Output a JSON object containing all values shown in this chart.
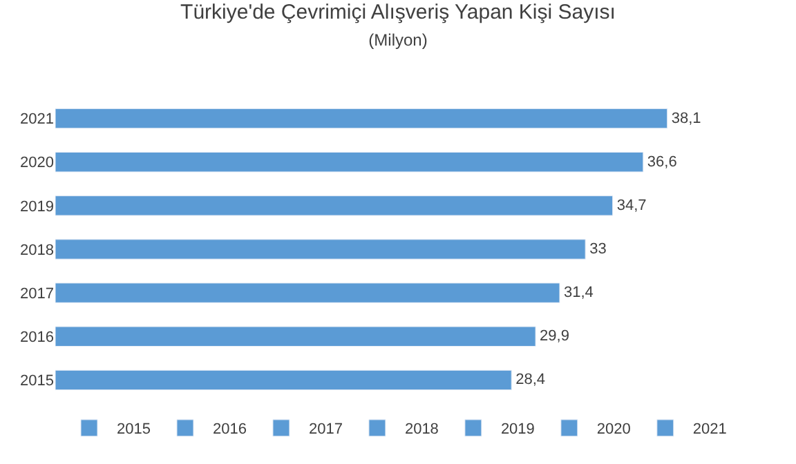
{
  "chart_data": {
    "type": "bar",
    "orientation": "horizontal",
    "title": "Türkiye'de Çevrimiçi Alışveriş Yapan Kişi Sayısı",
    "subtitle": "(Milyon)",
    "categories": [
      "2021",
      "2020",
      "2019",
      "2018",
      "2017",
      "2016",
      "2015"
    ],
    "series": [
      {
        "name": "2015",
        "color": "#5b9bd5",
        "values": [
          null,
          null,
          null,
          null,
          null,
          null,
          28.4
        ],
        "value_labels": [
          null,
          null,
          null,
          null,
          null,
          null,
          "28,4"
        ]
      },
      {
        "name": "2016",
        "color": "#5b9bd5",
        "values": [
          null,
          null,
          null,
          null,
          null,
          29.9,
          null
        ],
        "value_labels": [
          null,
          null,
          null,
          null,
          null,
          "29,9",
          null
        ]
      },
      {
        "name": "2017",
        "color": "#5b9bd5",
        "values": [
          null,
          null,
          null,
          null,
          31.4,
          null,
          null
        ],
        "value_labels": [
          null,
          null,
          null,
          null,
          "31,4",
          null,
          null
        ]
      },
      {
        "name": "2018",
        "color": "#5b9bd5",
        "values": [
          null,
          null,
          null,
          33,
          null,
          null,
          null
        ],
        "value_labels": [
          null,
          null,
          null,
          "33",
          null,
          null,
          null
        ]
      },
      {
        "name": "2019",
        "color": "#5b9bd5",
        "values": [
          null,
          null,
          34.7,
          null,
          null,
          null,
          null
        ],
        "value_labels": [
          null,
          null,
          "34,7",
          null,
          null,
          null,
          null
        ]
      },
      {
        "name": "2020",
        "color": "#5b9bd5",
        "values": [
          null,
          36.6,
          null,
          null,
          null,
          null,
          null
        ],
        "value_labels": [
          null,
          "36,6",
          null,
          null,
          null,
          null,
          null
        ]
      },
      {
        "name": "2021",
        "color": "#5b9bd5",
        "values": [
          38.1,
          null,
          null,
          null,
          null,
          null,
          null
        ],
        "value_labels": [
          "38,1",
          null,
          null,
          null,
          null,
          null,
          null
        ]
      }
    ],
    "legend": "bottom",
    "tick_labels": "y"
  }
}
